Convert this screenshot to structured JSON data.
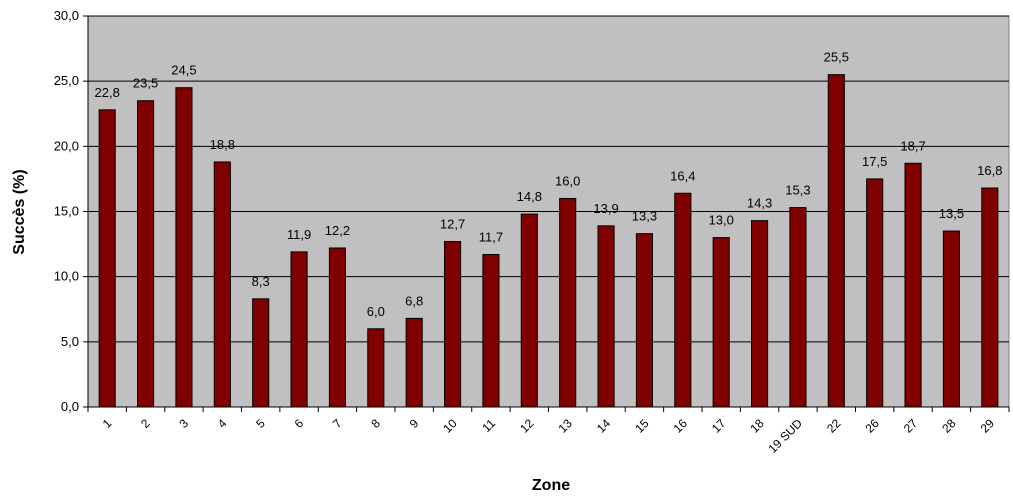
{
  "chart_data": {
    "type": "bar",
    "title": "",
    "xlabel": "Zone",
    "ylabel": "Succès (%)",
    "ylim": [
      0,
      30
    ],
    "yticks": [
      "0,0",
      "5,0",
      "10,0",
      "15,0",
      "20,0",
      "25,0",
      "30,0"
    ],
    "grid": true,
    "legend": "none",
    "categories": [
      "1",
      "2",
      "3",
      "4",
      "5",
      "6",
      "7",
      "8",
      "9",
      "10",
      "11",
      "12",
      "13",
      "14",
      "15",
      "16",
      "17",
      "18",
      "19 SUD",
      "22",
      "26",
      "27",
      "28",
      "29"
    ],
    "values": [
      22.8,
      23.5,
      24.5,
      18.8,
      8.3,
      11.9,
      12.2,
      6.0,
      6.8,
      12.7,
      11.7,
      14.8,
      16.0,
      13.9,
      13.3,
      16.4,
      13.0,
      14.3,
      15.3,
      25.5,
      17.5,
      18.7,
      13.5,
      16.8
    ],
    "value_labels": [
      "22,8",
      "23,5",
      "24,5",
      "18,8",
      "8,3",
      "11,9",
      "12,2",
      "6,0",
      "6,8",
      "12,7",
      "11,7",
      "14,8",
      "16,0",
      "13,9",
      "13,3",
      "16,4",
      "13,0",
      "14,3",
      "15,3",
      "25,5",
      "17,5",
      "18,7",
      "13,5",
      "16,8"
    ],
    "colors": {
      "bar": "#800000",
      "bar_stroke": "#000000",
      "plot_bg": "#c0c0c0",
      "grid": "#000000"
    }
  }
}
